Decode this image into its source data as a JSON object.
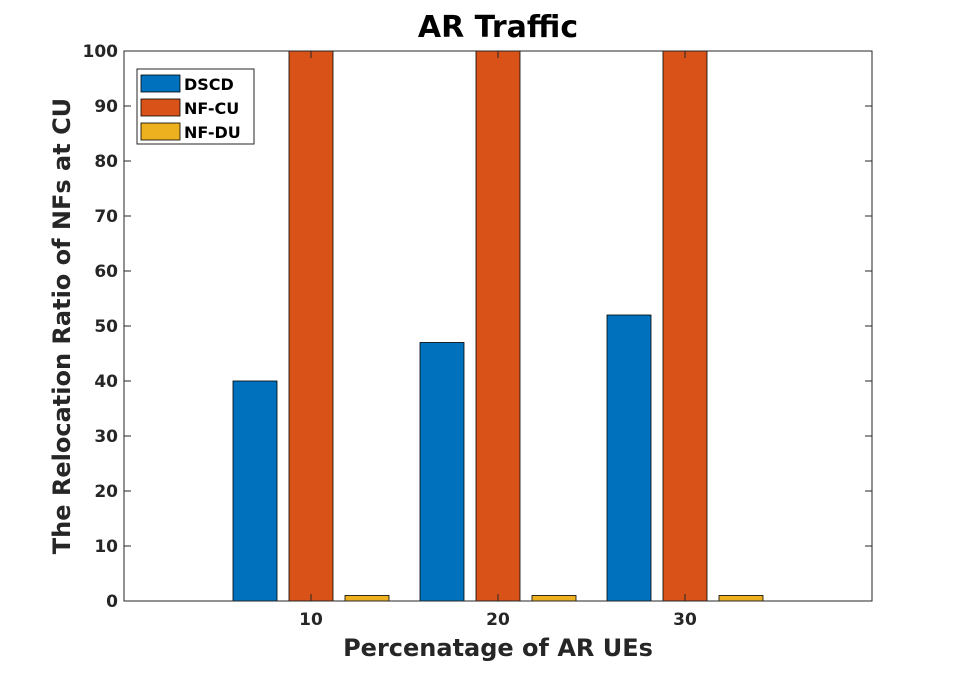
{
  "chart_data": {
    "type": "bar",
    "title": "AR Traffic",
    "xlabel": "Percenatage of AR UEs",
    "ylabel": "The Relocation Ratio of NFs at CU",
    "categories": [
      "10",
      "20",
      "30"
    ],
    "series": [
      {
        "name": "DSCD",
        "values": [
          40,
          47,
          52
        ],
        "color": "#0072BD"
      },
      {
        "name": "NF-CU",
        "values": [
          100,
          100,
          100
        ],
        "color": "#D95319"
      },
      {
        "name": "NF-DU",
        "values": [
          1,
          1,
          1
        ],
        "color": "#EDB120"
      }
    ],
    "ylim": [
      0,
      100
    ],
    "yticks": [
      0,
      10,
      20,
      30,
      40,
      50,
      60,
      70,
      80,
      90,
      100
    ],
    "grid": false,
    "legend_position": "top-left"
  }
}
